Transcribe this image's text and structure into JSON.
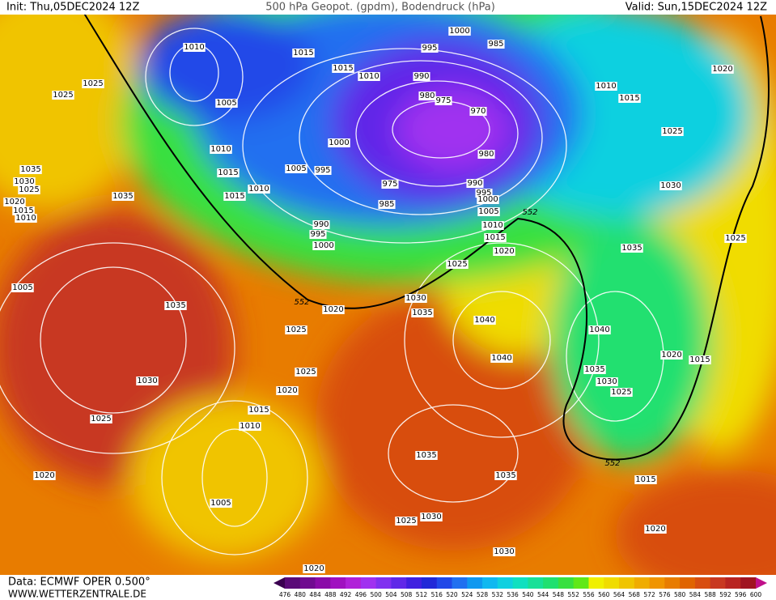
{
  "header": {
    "init": "Init: Thu,05DEC2024 12Z",
    "title": "500 hPa Geopot. (gpdm), Bodendruck (hPa)",
    "valid": "Valid: Sun,15DEC2024 12Z"
  },
  "footer": {
    "data": "Data: ECMWF OPER 0.500°",
    "site": "WWW.WETTERZENTRALE.DE"
  },
  "colorbar": {
    "ticks": [
      "476",
      "480",
      "484",
      "488",
      "492",
      "496",
      "500",
      "504",
      "508",
      "512",
      "516",
      "520",
      "524",
      "528",
      "532",
      "536",
      "540",
      "544",
      "548",
      "552",
      "556",
      "560",
      "564",
      "568",
      "572",
      "576",
      "580",
      "584",
      "588",
      "592",
      "596",
      "600"
    ],
    "colors": [
      "#5a0a78",
      "#700a90",
      "#8a0aa8",
      "#a010c0",
      "#b020d8",
      "#a030f0",
      "#8030f0",
      "#6028e8",
      "#4020e0",
      "#2028d8",
      "#2048e8",
      "#2070f0",
      "#1098f0",
      "#10b8f0",
      "#10d0e0",
      "#10e0c0",
      "#18e098",
      "#20e070",
      "#38e040",
      "#60e818",
      "#f0f000",
      "#f0dc00",
      "#f0c400",
      "#f0ac00",
      "#f09400",
      "#e87c00",
      "#e06400",
      "#d84e10",
      "#c83820",
      "#b82420",
      "#a01420"
    ],
    "end_colors": [
      "#3a0050",
      "#c0108a"
    ]
  },
  "isobar_labels": [
    "1010",
    "1015",
    "1025",
    "1025",
    "1005",
    "1015",
    "1010",
    "1000",
    "995",
    "985",
    "990",
    "980",
    "975",
    "970",
    "1010",
    "1015",
    "1020",
    "1025",
    "1010",
    "1000",
    "1015",
    "1005",
    "995",
    "1035",
    "1030",
    "1025",
    "1035",
    "1020",
    "1015",
    "1010",
    "1015",
    "1010",
    "980",
    "975",
    "985",
    "990",
    "995",
    "1000",
    "1005",
    "1010",
    "1015",
    "1020",
    "1030",
    "990",
    "995",
    "1000",
    "1025",
    "1035",
    "1025",
    "1005",
    "1035",
    "1020",
    "1030",
    "1035",
    "1040",
    "1025",
    "1040",
    "1040",
    "1020",
    "1015",
    "1030",
    "1025",
    "1020",
    "1035",
    "1030",
    "1025",
    "1015",
    "1010",
    "1025",
    "1035",
    "1035",
    "1020",
    "1015",
    "1005",
    "1030",
    "1025",
    "1020",
    "1030",
    "1020"
  ],
  "height_labels": [
    "552",
    "552",
    "552"
  ]
}
